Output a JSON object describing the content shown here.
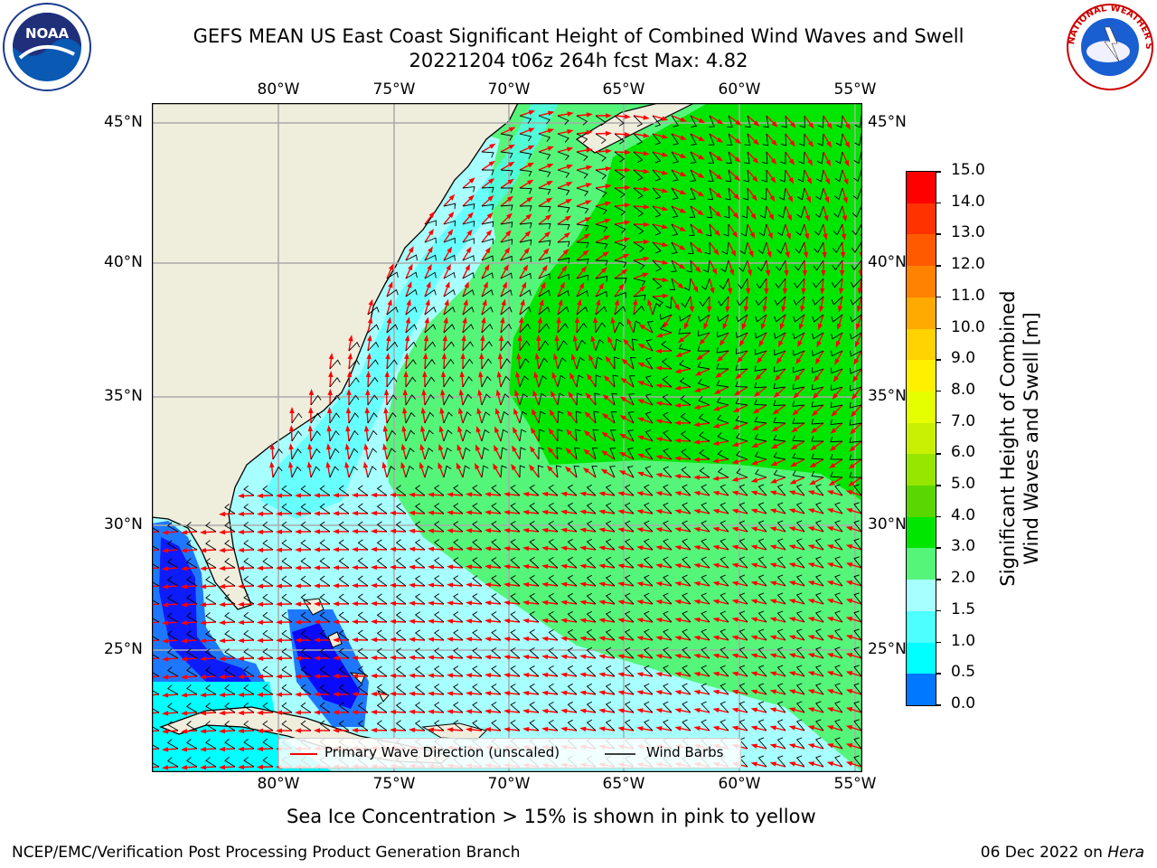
{
  "header": {
    "title_line1": "GEFS MEAN US East Coast Significant Height of Combined Wind Waves and Swell",
    "title_line2": "20221204 t06z 264h fcst   Max: 4.82"
  },
  "logos": {
    "noaa_text": "NOAA",
    "nws_text": "NATIONAL WEATHER SERVICE"
  },
  "map": {
    "lon_labels": [
      "80°W",
      "75°W",
      "70°W",
      "65°W",
      "60°W",
      "55°W"
    ],
    "lat_labels": [
      "45°N",
      "40°N",
      "35°N",
      "30°N",
      "25°N"
    ],
    "legend": {
      "wave_label": "Primary Wave Direction (unscaled)",
      "barb_label": "Wind Barbs"
    },
    "colors": {
      "land": "#efeddc",
      "ocean_0_1": "#0a0aff",
      "ocean_1": "#1e78ff",
      "ocean_1_5": "#00ffff",
      "ocean_2": "#a8ffff",
      "ocean_3": "#55f57a",
      "ocean_4": "#00e600",
      "arrow": "#ff0000"
    }
  },
  "colorbar": {
    "label_line1": "Significant Height of Combined",
    "label_line2": "Wind Waves and Swell [m]",
    "ticks": [
      "15.0",
      "14.0",
      "13.0",
      "12.0",
      "11.0",
      "10.0",
      "9.0",
      "8.0",
      "7.0",
      "6.0",
      "5.0",
      "4.0",
      "3.0",
      "2.0",
      "1.5",
      "1.0",
      "0.5",
      "0.0"
    ],
    "colors": [
      "#ff0000",
      "#ff3200",
      "#ff5a00",
      "#ff8200",
      "#ffaa00",
      "#ffd200",
      "#fff000",
      "#e6ff00",
      "#c8f000",
      "#96e600",
      "#5ad700",
      "#00e600",
      "#55f57a",
      "#a8ffff",
      "#4dffff",
      "#00ffff",
      "#0078ff",
      "#0000ff"
    ]
  },
  "caption": "Sea Ice Concentration > 15% is shown in pink to yellow",
  "footer": {
    "left": "NCEP/EMC/Verification Post Processing Product Generation Branch",
    "right_date": "06 Dec 2022 on ",
    "right_host": "Hera"
  }
}
